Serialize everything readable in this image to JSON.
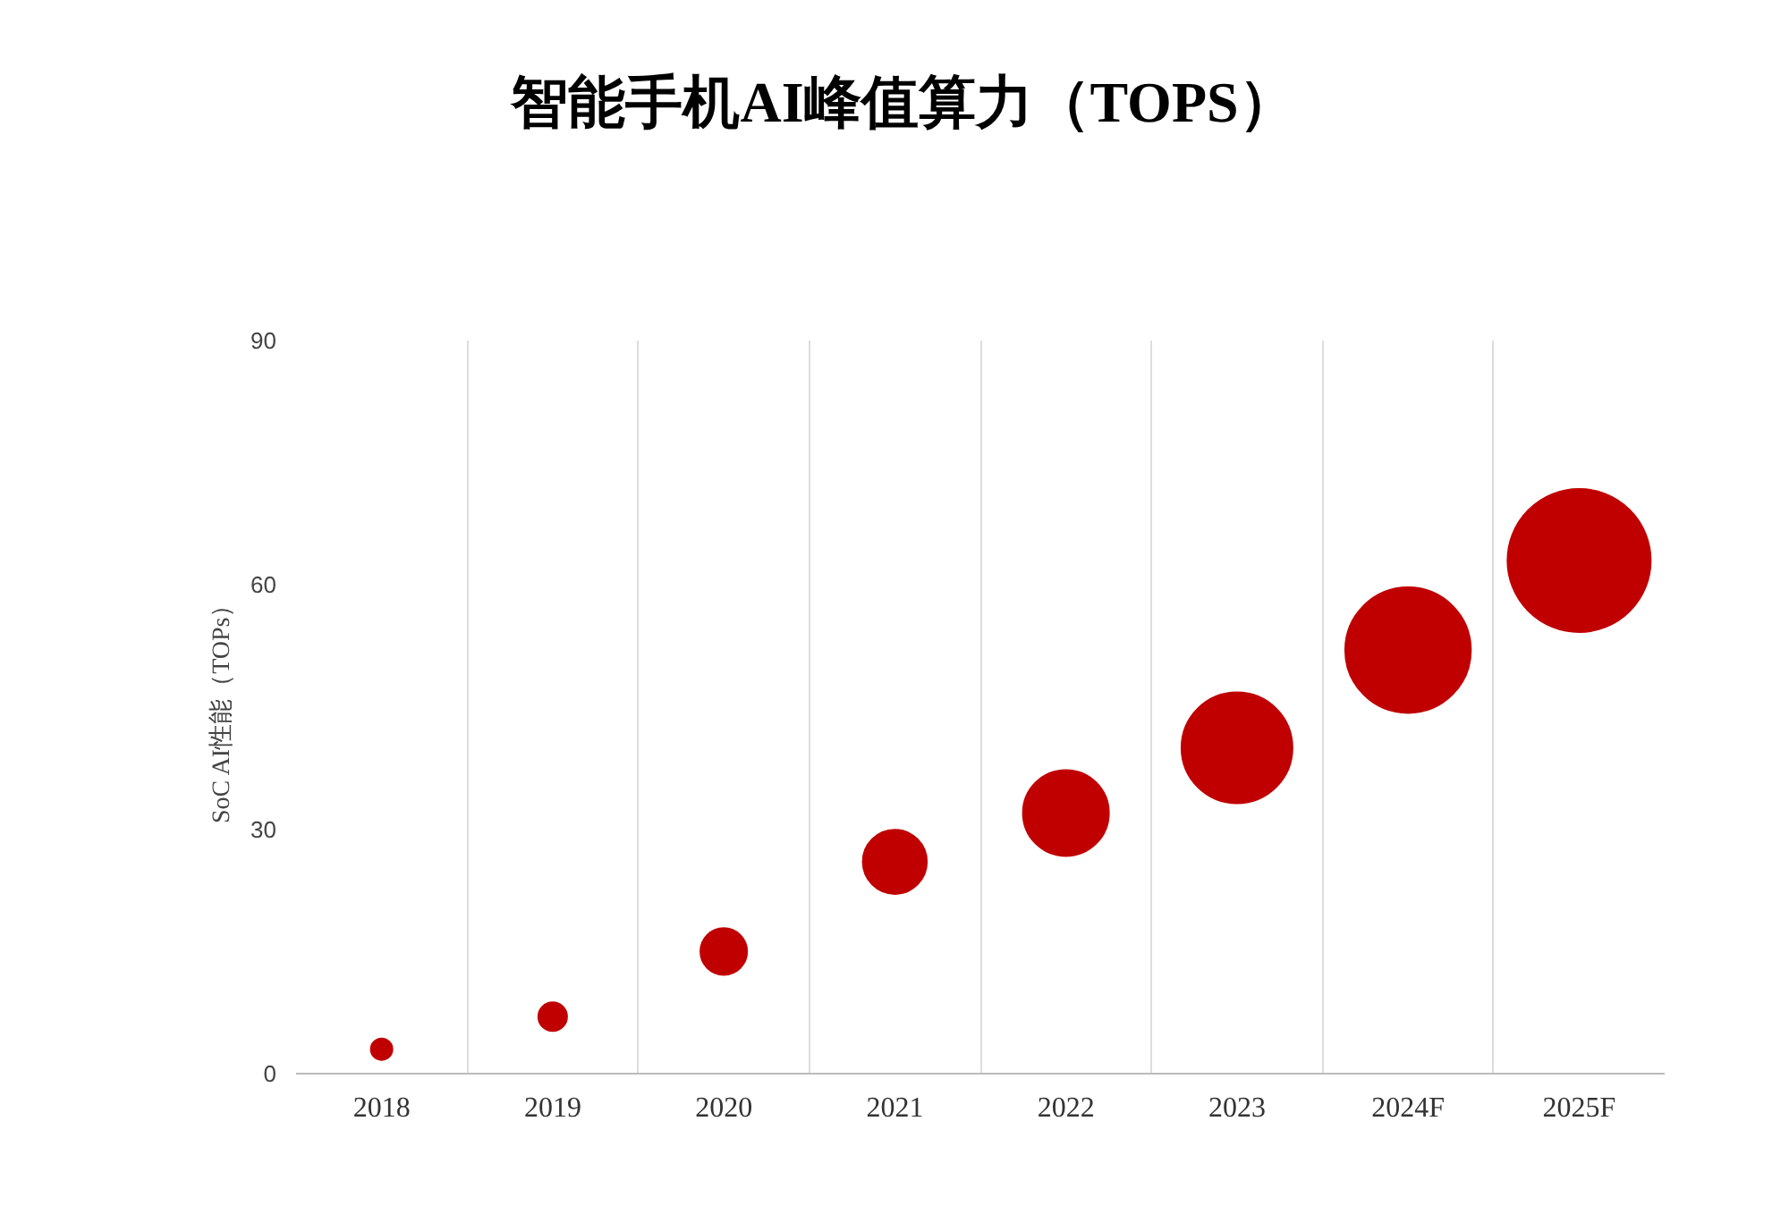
{
  "chart_data": {
    "type": "bubble",
    "title": "智能手机AI峰值算力（TOPS）",
    "ylabel": "SoC AI性能（TOPs）",
    "categories": [
      "2018",
      "2019",
      "2020",
      "2021",
      "2022",
      "2023",
      "2024F",
      "2025F"
    ],
    "values": [
      3,
      7,
      15,
      26,
      32,
      40,
      52,
      63
    ],
    "sizes": [
      0.0225,
      0.04,
      0.106,
      0.2,
      0.36,
      0.6,
      0.77,
      1
    ],
    "color": "#c00000",
    "ylim": [
      0,
      90
    ],
    "yticks": [
      0,
      30,
      60,
      90
    ],
    "grid": "x"
  }
}
